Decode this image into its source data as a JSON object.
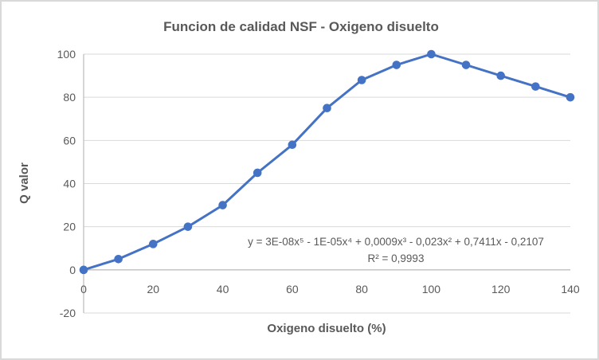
{
  "chart_data": {
    "type": "line",
    "title": "Funcion de calidad NSF - Oxigeno disuelto",
    "xlabel": "Oxigeno disuelto (%)",
    "ylabel": "Q valor",
    "series_name": "Q valor",
    "x": [
      0,
      10,
      20,
      30,
      40,
      50,
      60,
      70,
      80,
      90,
      100,
      110,
      120,
      130,
      140
    ],
    "values": [
      0,
      5,
      12,
      20,
      30,
      45,
      58,
      75,
      88,
      95,
      100,
      95,
      90,
      85,
      80
    ],
    "xlim": [
      0,
      140
    ],
    "ylim": [
      -20,
      100
    ],
    "x_ticks": [
      0,
      20,
      40,
      60,
      80,
      100,
      120,
      140
    ],
    "y_ticks": [
      -20,
      0,
      20,
      40,
      60,
      80,
      100
    ],
    "grid": "horizontal",
    "legend": "none",
    "marker": "circle",
    "line_style": "solid",
    "trendline": {
      "type": "polynomial",
      "degree": 5,
      "style": "dotted",
      "equation_display": "y = 3E-08x⁵ - 1E-05x⁴ + 0,0009x³ - 0,023x² + 0,7411x - 0,2107",
      "r2_display": "R² = 0,9993"
    },
    "colors": {
      "series": "#4472C4",
      "trendline": "#4472C4",
      "gridline": "#D9D9D9",
      "axis_line": "#BFBFBF",
      "text": "#595959",
      "background": "#FFFFFF",
      "border": "#D9D9D9"
    }
  }
}
